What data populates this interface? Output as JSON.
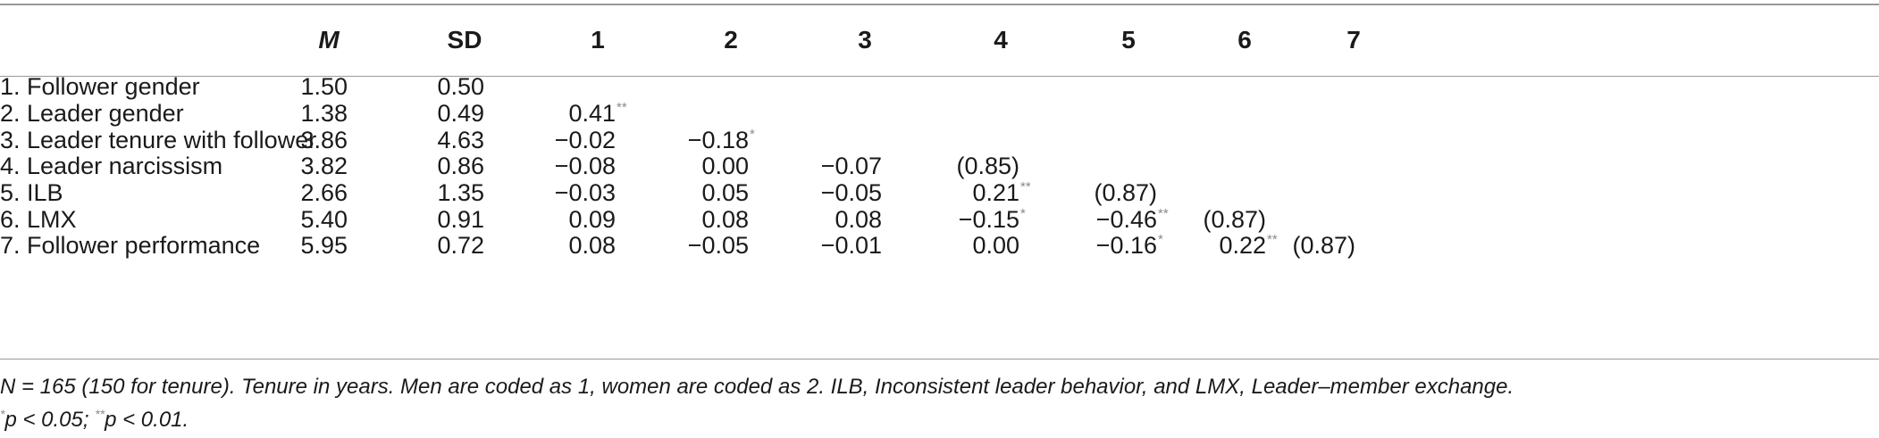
{
  "table": {
    "headers": [
      "M",
      "SD",
      "1",
      "2",
      "3",
      "4",
      "5",
      "6",
      "7"
    ],
    "rows": [
      {
        "label": "1. Follower gender",
        "m": "1.50",
        "sd": "0.50",
        "cells": []
      },
      {
        "label": "2. Leader gender",
        "m": "1.38",
        "sd": "0.49",
        "cells": [
          {
            "v": "0.41",
            "s": "**"
          }
        ]
      },
      {
        "label": "3. Leader tenure with follower",
        "m": "3.86",
        "sd": "4.63",
        "cells": [
          {
            "v": "−0.02",
            "s": ""
          },
          {
            "v": "−0.18",
            "s": "*"
          }
        ]
      },
      {
        "label": "4. Leader narcissism",
        "m": "3.82",
        "sd": "0.86",
        "cells": [
          {
            "v": "−0.08",
            "s": ""
          },
          {
            "v": "0.00",
            "s": ""
          },
          {
            "v": "−0.07",
            "s": ""
          },
          {
            "v": "(0.85)",
            "s": ""
          }
        ]
      },
      {
        "label": "5. ILB",
        "m": "2.66",
        "sd": "1.35",
        "cells": [
          {
            "v": "−0.03",
            "s": ""
          },
          {
            "v": "0.05",
            "s": ""
          },
          {
            "v": "−0.05",
            "s": ""
          },
          {
            "v": "0.21",
            "s": "**"
          },
          {
            "v": "(0.87)",
            "s": ""
          }
        ]
      },
      {
        "label": "6. LMX",
        "m": "5.40",
        "sd": "0.91",
        "cells": [
          {
            "v": "0.09",
            "s": ""
          },
          {
            "v": "0.08",
            "s": ""
          },
          {
            "v": "0.08",
            "s": ""
          },
          {
            "v": "−0.15",
            "s": "*"
          },
          {
            "v": "−0.46",
            "s": "**"
          },
          {
            "v": "(0.87)",
            "s": ""
          }
        ]
      },
      {
        "label": "7. Follower performance",
        "m": "5.95",
        "sd": "0.72",
        "cells": [
          {
            "v": "0.08",
            "s": ""
          },
          {
            "v": "−0.05",
            "s": ""
          },
          {
            "v": "−0.01",
            "s": ""
          },
          {
            "v": "0.00",
            "s": ""
          },
          {
            "v": "−0.16",
            "s": "*"
          },
          {
            "v": "0.22",
            "s": "**"
          },
          {
            "v": "(0.87)",
            "s": ""
          }
        ]
      }
    ]
  },
  "notes": {
    "line1": "N = 165 (150 for tenure). Tenure in years. Men are coded as 1, women are coded as 2. ILB, Inconsistent leader behavior, and LMX, Leader–member exchange.",
    "line2_a_sup": "*",
    "line2_a": "p < 0.05; ",
    "line2_b_sup": "**",
    "line2_b": "p < 0.01."
  }
}
